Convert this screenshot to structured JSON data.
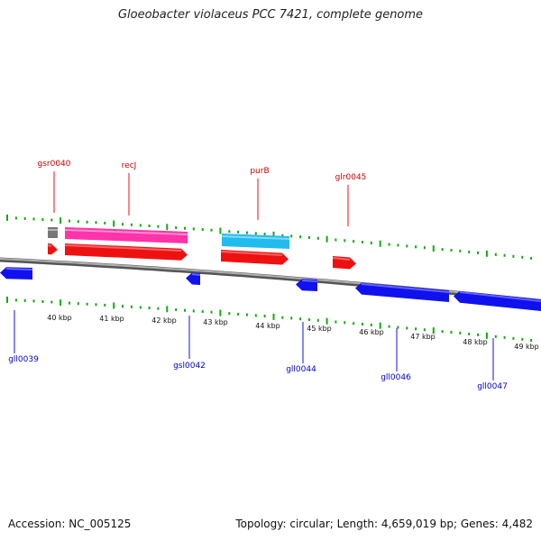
{
  "title": "Gloeobacter violaceus PCC 7421, complete genome",
  "footer": {
    "accession": "Accession: NC_005125",
    "topology": "Topology: circular; Length: 4,659,019 bp; Genes: 4,482"
  },
  "colors": {
    "forward_gene": "#ee1111",
    "reverse_gene": "#1111ee",
    "rna_gene": "#ff33aa",
    "other_gene": "#22bbee",
    "unknown_gene": "#777777",
    "tick": "#11aa11",
    "backbone": "#888888"
  },
  "ruler": {
    "unit": "kbp",
    "tick_labels": [
      "40 kbp",
      "41 kbp",
      "42 kbp",
      "43 kbp",
      "44 kbp",
      "45 kbp",
      "46 kbp",
      "47 kbp",
      "48 kbp",
      "49 kbp"
    ]
  },
  "genes": {
    "top_labels": [
      "gsr0040",
      "recJ",
      "purB",
      "glr0045"
    ],
    "bottom_labels": [
      "gll0039",
      "gsl0042",
      "gll0044",
      "gll0046",
      "gll0047"
    ]
  }
}
